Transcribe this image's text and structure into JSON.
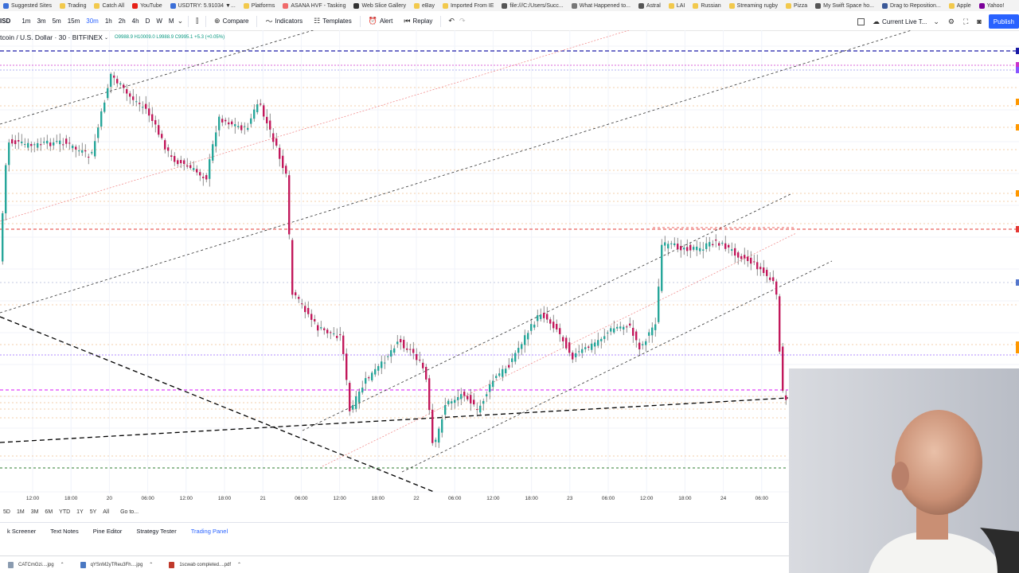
{
  "bookmarks": [
    {
      "label": "Suggested Sites",
      "color": "#3b6fd8"
    },
    {
      "label": "Trading",
      "color": "#f2c94c"
    },
    {
      "label": "Catch All",
      "color": "#f2c94c"
    },
    {
      "label": "YouTube",
      "color": "#e62117"
    },
    {
      "label": "USDTRY: 5.91034 ▼...",
      "color": "#3b6fd8"
    },
    {
      "label": "Platforms",
      "color": "#f2c94c"
    },
    {
      "label": "ASANA HVF - Tasking",
      "color": "#f06a6a"
    },
    {
      "label": "Web Slice Gallery",
      "color": "#333333"
    },
    {
      "label": "eBay",
      "color": "#f2c94c"
    },
    {
      "label": "Imported From IE",
      "color": "#f2c94c"
    },
    {
      "label": "file:///C:/Users/Succ...",
      "color": "#555555"
    },
    {
      "label": "What Happened to...",
      "color": "#777777"
    },
    {
      "label": "Astral",
      "color": "#555555"
    },
    {
      "label": "LAI",
      "color": "#f2c94c"
    },
    {
      "label": "Russian",
      "color": "#f2c94c"
    },
    {
      "label": "Streaming rugby",
      "color": "#f2c94c"
    },
    {
      "label": "Pizza",
      "color": "#f2c94c"
    },
    {
      "label": "My Swift Space ho...",
      "color": "#555555"
    },
    {
      "label": "Drag to Reposition...",
      "color": "#3b5998"
    },
    {
      "label": "Apple",
      "color": "#f2c94c"
    },
    {
      "label": "Yahoo!",
      "color": "#7b0099"
    }
  ],
  "toolbar": {
    "symbol_fragment": "ISD",
    "timeframes": [
      "1m",
      "3m",
      "5m",
      "15m",
      "30m",
      "1h",
      "2h",
      "4h",
      "D",
      "W",
      "M"
    ],
    "active_timeframe": "30m",
    "compare_label": "Compare",
    "indicators_label": "Indicators",
    "templates_label": "Templates",
    "alert_label": "Alert",
    "replay_label": "Replay",
    "layout_label": "Current Live T...",
    "publish_label": "Publish",
    "accent_color": "#2962ff"
  },
  "legend": {
    "symbol": "tcoin / U.S. Dollar · 30 · BITFINEX",
    "ohlc": "O9988.9  H10009.0  L9988.9  C9995.1  +5.3 (+0.05%)"
  },
  "time_axis": {
    "ticks": [
      "12:00",
      "18:00",
      "20",
      "06:00",
      "12:00",
      "18:00",
      "21",
      "06:00",
      "12:00",
      "18:00",
      "22",
      "06:00",
      "12:00",
      "18:00",
      "23",
      "06:00",
      "12:00",
      "18:00",
      "24",
      "06:00"
    ]
  },
  "range_bar": {
    "ranges": [
      "5D",
      "1M",
      "3M",
      "6M",
      "YTD",
      "1Y",
      "5Y",
      "All"
    ],
    "goto_label": "Go to..."
  },
  "bottom_tabs": {
    "items": [
      "k Screener",
      "Text Notes",
      "Pine Editor",
      "Strategy Tester",
      "Trading Panel"
    ],
    "active": "Trading Panel"
  },
  "downloads": [
    {
      "label": "CATCmGzi....jpg",
      "color": "#8a9bb0"
    },
    {
      "label": "qYSnM2yTReu3Fh....jpg",
      "color": "#4a78c2"
    },
    {
      "label": "1scwab completed....pdf",
      "color": "#c0392b"
    }
  ],
  "colors": {
    "up_candle": "#26a69a",
    "down_candle": "#c2185b",
    "wick": "#444444"
  }
}
